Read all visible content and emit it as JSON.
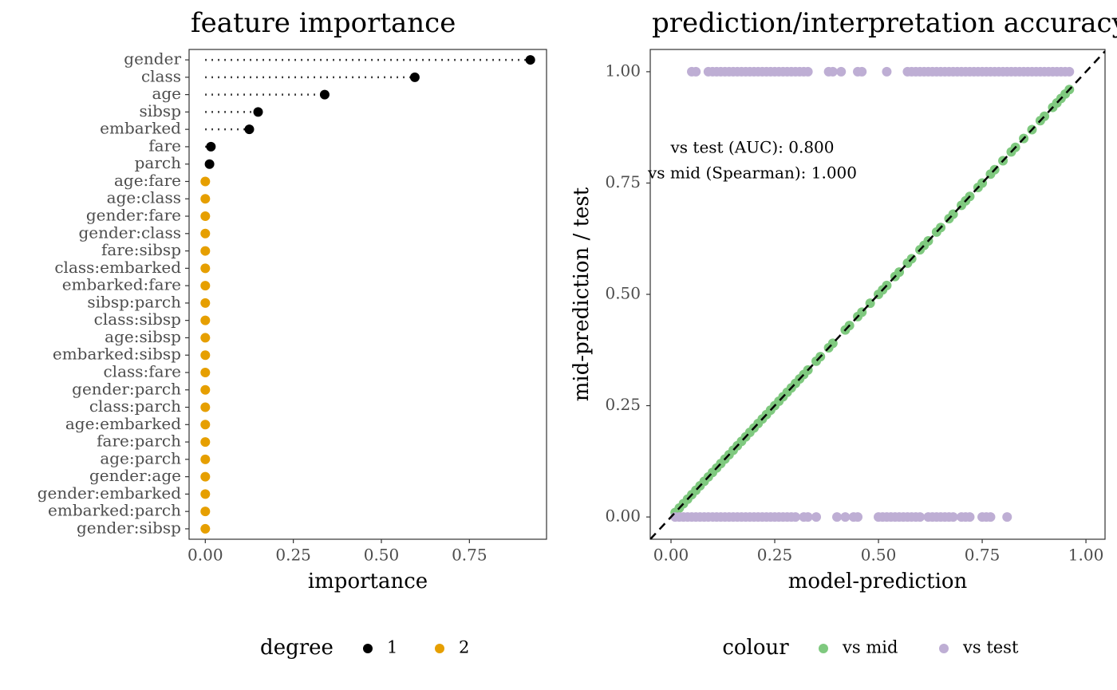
{
  "chart_data": [
    {
      "type": "dot",
      "title": "feature importance",
      "x_label": "importance",
      "legend_title": "degree",
      "categories": [
        "gender",
        "class",
        "age",
        "sibsp",
        "embarked",
        "fare",
        "parch",
        "age:fare",
        "age:class",
        "gender:fare",
        "gender:class",
        "fare:sibsp",
        "class:embarked",
        "embarked:fare",
        "sibsp:parch",
        "class:sibsp",
        "age:sibsp",
        "embarked:sibsp",
        "class:fare",
        "gender:parch",
        "class:parch",
        "age:embarked",
        "fare:parch",
        "age:parch",
        "gender:age",
        "gender:embarked",
        "embarked:parch",
        "gender:sibsp"
      ],
      "series": [
        {
          "name": "1",
          "color": "#000000",
          "values": [
            0.923,
            0.595,
            0.339,
            0.15,
            0.125,
            0.016,
            0.012,
            null,
            null,
            null,
            null,
            null,
            null,
            null,
            null,
            null,
            null,
            null,
            null,
            null,
            null,
            null,
            null,
            null,
            null,
            null,
            null,
            null
          ]
        },
        {
          "name": "2",
          "color": "#E69F00",
          "values": [
            null,
            null,
            null,
            null,
            null,
            null,
            null,
            0,
            0,
            0,
            0,
            0,
            0,
            0,
            0,
            0,
            0,
            0,
            0,
            0,
            0,
            0,
            0,
            0,
            0,
            0,
            0,
            0
          ]
        }
      ],
      "xlim": [
        -0.046,
        0.969
      ],
      "xticks": [
        {
          "value": 0,
          "label": "0.00"
        },
        {
          "value": 0.25,
          "label": "0.25"
        },
        {
          "value": 0.5,
          "label": "0.50"
        },
        {
          "value": 0.75,
          "label": "0.75"
        }
      ]
    },
    {
      "type": "scatter",
      "title": "prediction/interpretation accuracy",
      "x_label": "model-prediction",
      "y_label": "mid-prediction / test",
      "legend_title": "colour",
      "annotations": [
        "vs test (AUC): 0.800",
        "vs mid (Spearman): 1.000"
      ],
      "series": [
        {
          "name": "vs mid",
          "color": "#7FC97F",
          "x": [
            0.01,
            0.02,
            0.03,
            0.04,
            0.05,
            0.06,
            0.07,
            0.08,
            0.09,
            0.1,
            0.11,
            0.12,
            0.13,
            0.14,
            0.15,
            0.16,
            0.17,
            0.18,
            0.19,
            0.2,
            0.21,
            0.22,
            0.23,
            0.24,
            0.25,
            0.26,
            0.27,
            0.28,
            0.29,
            0.3,
            0.31,
            0.32,
            0.33,
            0.35,
            0.36,
            0.38,
            0.39,
            0.42,
            0.43,
            0.45,
            0.46,
            0.48,
            0.5,
            0.51,
            0.52,
            0.54,
            0.55,
            0.57,
            0.58,
            0.6,
            0.61,
            0.62,
            0.64,
            0.65,
            0.67,
            0.68,
            0.7,
            0.71,
            0.72,
            0.74,
            0.75,
            0.77,
            0.78,
            0.8,
            0.82,
            0.83,
            0.85,
            0.87,
            0.89,
            0.9,
            0.92,
            0.93,
            0.94,
            0.95,
            0.96
          ],
          "values": [
            0.01,
            0.02,
            0.03,
            0.04,
            0.05,
            0.06,
            0.07,
            0.08,
            0.09,
            0.1,
            0.11,
            0.12,
            0.13,
            0.14,
            0.15,
            0.16,
            0.17,
            0.18,
            0.19,
            0.2,
            0.21,
            0.22,
            0.23,
            0.24,
            0.25,
            0.26,
            0.27,
            0.28,
            0.29,
            0.3,
            0.31,
            0.32,
            0.33,
            0.35,
            0.36,
            0.38,
            0.39,
            0.42,
            0.43,
            0.45,
            0.46,
            0.48,
            0.5,
            0.51,
            0.52,
            0.54,
            0.55,
            0.57,
            0.58,
            0.6,
            0.61,
            0.62,
            0.64,
            0.65,
            0.67,
            0.68,
            0.7,
            0.71,
            0.72,
            0.74,
            0.75,
            0.77,
            0.78,
            0.8,
            0.82,
            0.83,
            0.85,
            0.87,
            0.89,
            0.9,
            0.92,
            0.93,
            0.94,
            0.95,
            0.96
          ]
        },
        {
          "name": "vs test",
          "color": "#BEAED4",
          "x": [
            0.05,
            0.06,
            0.09,
            0.1,
            0.11,
            0.12,
            0.13,
            0.14,
            0.15,
            0.16,
            0.17,
            0.18,
            0.19,
            0.2,
            0.21,
            0.22,
            0.23,
            0.24,
            0.25,
            0.26,
            0.27,
            0.28,
            0.29,
            0.3,
            0.31,
            0.32,
            0.33,
            0.38,
            0.39,
            0.41,
            0.45,
            0.46,
            0.52,
            0.57,
            0.58,
            0.59,
            0.6,
            0.61,
            0.62,
            0.63,
            0.64,
            0.65,
            0.66,
            0.67,
            0.68,
            0.69,
            0.7,
            0.71,
            0.72,
            0.73,
            0.74,
            0.75,
            0.76,
            0.77,
            0.78,
            0.79,
            0.8,
            0.81,
            0.82,
            0.83,
            0.84,
            0.85,
            0.86,
            0.87,
            0.88,
            0.89,
            0.9,
            0.91,
            0.92,
            0.93,
            0.94,
            0.95,
            0.96,
            0.01,
            0.02,
            0.03,
            0.04,
            0.05,
            0.06,
            0.07,
            0.08,
            0.09,
            0.1,
            0.11,
            0.12,
            0.13,
            0.14,
            0.15,
            0.16,
            0.17,
            0.18,
            0.19,
            0.2,
            0.21,
            0.22,
            0.23,
            0.24,
            0.25,
            0.26,
            0.27,
            0.28,
            0.29,
            0.3,
            0.32,
            0.33,
            0.35,
            0.4,
            0.42,
            0.44,
            0.45,
            0.5,
            0.51,
            0.52,
            0.53,
            0.54,
            0.55,
            0.56,
            0.57,
            0.58,
            0.59,
            0.6,
            0.62,
            0.63,
            0.64,
            0.65,
            0.66,
            0.67,
            0.68,
            0.7,
            0.71,
            0.72,
            0.75,
            0.76,
            0.77,
            0.81
          ],
          "values": [
            1,
            1,
            1,
            1,
            1,
            1,
            1,
            1,
            1,
            1,
            1,
            1,
            1,
            1,
            1,
            1,
            1,
            1,
            1,
            1,
            1,
            1,
            1,
            1,
            1,
            1,
            1,
            1,
            1,
            1,
            1,
            1,
            1,
            1,
            1,
            1,
            1,
            1,
            1,
            1,
            1,
            1,
            1,
            1,
            1,
            1,
            1,
            1,
            1,
            1,
            1,
            1,
            1,
            1,
            1,
            1,
            1,
            1,
            1,
            1,
            1,
            1,
            1,
            1,
            1,
            1,
            1,
            1,
            1,
            1,
            1,
            1,
            1,
            0,
            0,
            0,
            0,
            0,
            0,
            0,
            0,
            0,
            0,
            0,
            0,
            0,
            0,
            0,
            0,
            0,
            0,
            0,
            0,
            0,
            0,
            0,
            0,
            0,
            0,
            0,
            0,
            0,
            0,
            0,
            0,
            0,
            0,
            0,
            0,
            0,
            0,
            0,
            0,
            0,
            0,
            0,
            0,
            0,
            0,
            0,
            0,
            0,
            0,
            0,
            0,
            0,
            0,
            0,
            0,
            0,
            0,
            0,
            0,
            0,
            0
          ]
        }
      ],
      "xlim": [
        -0.05,
        1.046
      ],
      "ylim": [
        -0.05,
        1.05
      ],
      "xticks": [
        {
          "value": 0,
          "label": "0.00"
        },
        {
          "value": 0.25,
          "label": "0.25"
        },
        {
          "value": 0.5,
          "label": "0.50"
        },
        {
          "value": 0.75,
          "label": "0.75"
        },
        {
          "value": 1,
          "label": "1.00"
        }
      ],
      "yticks": [
        {
          "value": 0,
          "label": "0.00"
        },
        {
          "value": 0.25,
          "label": "0.25"
        },
        {
          "value": 0.5,
          "label": "0.50"
        },
        {
          "value": 0.75,
          "label": "0.75"
        },
        {
          "value": 1,
          "label": "1.00"
        }
      ]
    }
  ]
}
